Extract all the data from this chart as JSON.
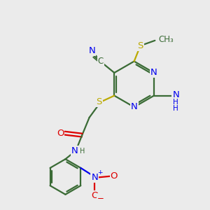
{
  "bg_color": "#ebebeb",
  "bond_color": "#3a6b35",
  "bond_width": 1.6,
  "atom_colors": {
    "C": "#3a6b35",
    "N": "#0000ee",
    "O": "#dd0000",
    "S": "#bbaa00",
    "H": "#3a6b35"
  },
  "font_size": 8.5
}
